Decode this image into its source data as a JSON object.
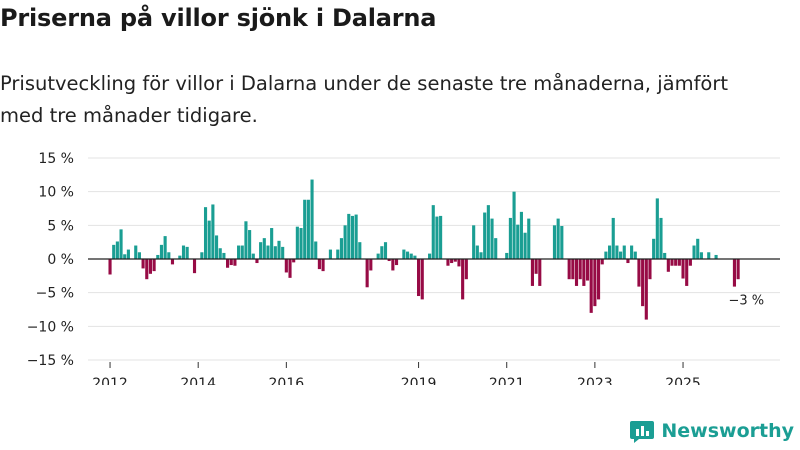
{
  "title": "Priserna på villor sjönk i Dalarna",
  "subtitle": "Prisutveckling för villor i Dalarna under de senaste tre månaderna, jämfört med tre månader tidigare.",
  "brand": {
    "name": "Newsworthy",
    "color": "#1b9e94"
  },
  "colors": {
    "positive": "#1a9e93",
    "negative": "#970b45",
    "gridline": "#e3e3e3",
    "zeroline": "#222222"
  },
  "chart_data": {
    "type": "bar",
    "title": "Priserna på villor sjönk i Dalarna",
    "xlabel": "",
    "ylabel": "",
    "ylim": [
      -15,
      15
    ],
    "yticks": [
      15,
      10,
      5,
      0,
      -5,
      -10,
      -15
    ],
    "ytick_labels": [
      "15 %",
      "10 %",
      "5 %",
      "0 %",
      "−5 %",
      "−10 %",
      "−15 %"
    ],
    "xlim": [
      2011.5,
      2027.2
    ],
    "xticks": [
      2012,
      2014,
      2016,
      2019,
      2021,
      2023,
      2025
    ],
    "xtick_labels": [
      "2012",
      "2014",
      "2016",
      "2019",
      "2021",
      "2023",
      "2025"
    ],
    "start_year": 2012,
    "start_month": 1,
    "values": [
      -2.3,
      2.1,
      2.6,
      4.4,
      0.7,
      1.4,
      0,
      2.0,
      1.0,
      -1.4,
      -3.0,
      -2.2,
      -1.8,
      0.6,
      2.1,
      3.4,
      1.0,
      -0.8,
      0,
      0.5,
      2.0,
      1.8,
      0,
      -2.1,
      0,
      1.0,
      7.7,
      5.7,
      8.1,
      3.5,
      1.6,
      0.9,
      -1.3,
      -0.9,
      -1.0,
      2.0,
      2.0,
      5.6,
      4.3,
      0.8,
      -0.6,
      2.5,
      3.1,
      2.0,
      4.6,
      1.9,
      2.7,
      1.8,
      -2.0,
      -2.8,
      -0.5,
      4.8,
      4.6,
      8.8,
      8.8,
      11.8,
      2.6,
      -1.5,
      -1.8,
      0,
      1.4,
      0,
      1.4,
      3.1,
      5.0,
      6.7,
      6.4,
      6.6,
      2.5,
      0,
      -4.2,
      -1.7,
      0,
      0.8,
      1.9,
      2.5,
      -0.3,
      -1.7,
      -0.9,
      0,
      1.4,
      1.1,
      0.8,
      0.5,
      -5.5,
      -6.0,
      0,
      0.8,
      8.0,
      6.3,
      6.4,
      0,
      -1.0,
      -0.6,
      -0.4,
      -1.1,
      -6.0,
      -3.0,
      0,
      5.0,
      2.0,
      1.0,
      6.9,
      8.0,
      6.0,
      3.1,
      0,
      0,
      0.9,
      6.1,
      10.0,
      5.1,
      7.0,
      3.9,
      6.0,
      -4.0,
      -2.2,
      -4.0,
      0,
      0,
      0,
      5.0,
      6.0,
      4.9,
      0,
      -3.0,
      -3.0,
      -4.0,
      -3.0,
      -4.0,
      -3.2,
      -8.0,
      -7.0,
      -6.0,
      -0.8,
      1.1,
      2.0,
      6.1,
      2.0,
      1.1,
      2.0,
      -0.6,
      2.0,
      1.1,
      -4.1,
      -7.0,
      -9.0,
      -3.0,
      3.0,
      9.0,
      6.1,
      0.9,
      -1.9,
      -1.0,
      -1.0,
      -1.0,
      -2.9,
      -4.0,
      -1.0,
      2.0,
      3.0,
      1.0,
      0,
      1.0,
      0,
      0.6,
      0,
      0,
      0,
      0,
      -4.1,
      -3.0
    ],
    "annotations": [
      {
        "text": "−3 %",
        "x_index": 170
      }
    ]
  }
}
